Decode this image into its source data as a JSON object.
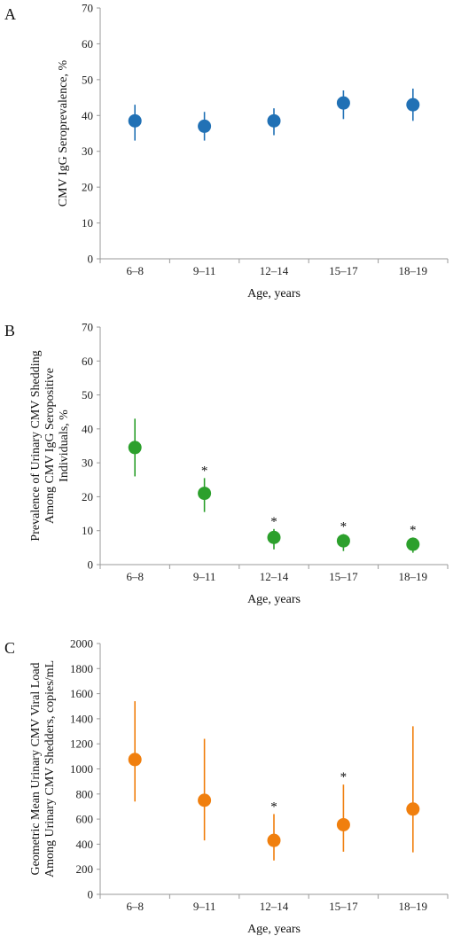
{
  "chart_data": [
    {
      "panel": "A",
      "type": "scatter",
      "categories": [
        "6–8",
        "9–11",
        "12–14",
        "15–17",
        "18–19"
      ],
      "xlabel": "Age, years",
      "ylabel": "CMV IgG Seroprevalence, %",
      "ylim": [
        0,
        70
      ],
      "yticks": [
        0,
        10,
        20,
        30,
        40,
        50,
        60,
        70
      ],
      "color": "#2171b5",
      "values": [
        38.5,
        37,
        38.5,
        43.5,
        43
      ],
      "lower": [
        33,
        33,
        34.5,
        39,
        38.5
      ],
      "upper": [
        43,
        41,
        42,
        47,
        47.5
      ],
      "significant": [
        false,
        false,
        false,
        false,
        false
      ],
      "grid": false
    },
    {
      "panel": "B",
      "type": "scatter",
      "categories": [
        "6–8",
        "9–11",
        "12–14",
        "15–17",
        "18–19"
      ],
      "xlabel": "Age, years",
      "ylabel": [
        "Prevalence of Urinary CMV Shedding",
        "Among CMV IgG Seropositive",
        "Individuals, %"
      ],
      "ylim": [
        0,
        70
      ],
      "yticks": [
        0,
        10,
        20,
        30,
        40,
        50,
        60,
        70
      ],
      "color": "#2ca02c",
      "values": [
        34.5,
        21,
        8,
        7,
        6
      ],
      "lower": [
        26,
        15.5,
        4.5,
        4,
        3.5
      ],
      "upper": [
        43,
        25.5,
        10.5,
        9,
        8
      ],
      "significant": [
        false,
        true,
        true,
        true,
        true
      ],
      "marker_label": "*",
      "grid": false
    },
    {
      "panel": "C",
      "type": "scatter",
      "categories": [
        "6–8",
        "9–11",
        "12–14",
        "15–17",
        "18–19"
      ],
      "xlabel": "Age, years",
      "ylabel": [
        "Geometric Mean Urinary CMV Viral Load",
        "Among Urinary CMV Shedders, copies/mL"
      ],
      "ylim": [
        0,
        2000
      ],
      "yticks": [
        0,
        200,
        400,
        600,
        800,
        1000,
        1200,
        1400,
        1600,
        1800,
        2000
      ],
      "color": "#f07f0e",
      "values": [
        1075,
        750,
        430,
        555,
        680
      ],
      "lower": [
        740,
        430,
        270,
        340,
        335
      ],
      "upper": [
        1540,
        1240,
        640,
        875,
        1340
      ],
      "significant": [
        false,
        false,
        true,
        true,
        false
      ],
      "marker_label": "*",
      "grid": false
    }
  ]
}
